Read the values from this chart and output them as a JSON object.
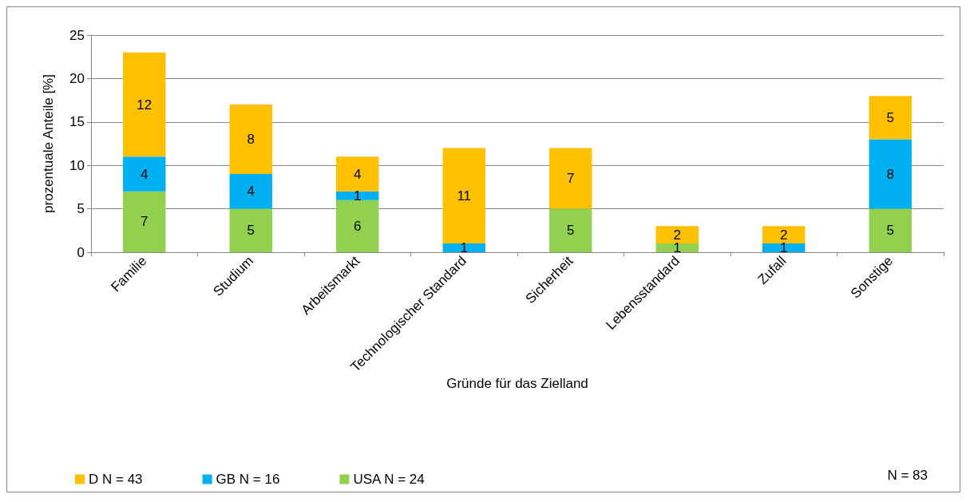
{
  "chart_data": {
    "type": "bar",
    "stacked": true,
    "xlabel": "Gründe für das Zielland",
    "ylabel": "prozentuale Anteile [%]",
    "categories": [
      "Familie",
      "Studium",
      "Arbeitsmarkt",
      "Technologischer Standard",
      "Sicherheit",
      "Lebensstandard",
      "Zufall",
      "Sonstige"
    ],
    "series": [
      {
        "name": "USA N = 24",
        "color": "#92d050",
        "values": [
          7,
          5,
          6,
          null,
          5,
          1,
          null,
          5
        ]
      },
      {
        "name": "GB N = 16",
        "color": "#00b0f0",
        "values": [
          4,
          4,
          1,
          1,
          null,
          null,
          1,
          8
        ]
      },
      {
        "name": "D N = 43",
        "color": "#ffc000",
        "values": [
          12,
          8,
          4,
          11,
          7,
          2,
          2,
          5
        ]
      }
    ],
    "ylim": [
      0,
      25
    ],
    "yticks": [
      0,
      5,
      10,
      15,
      20,
      25
    ],
    "grid": "y",
    "legend": "bottom left",
    "data_labels": true,
    "annotations": [
      "N = 83"
    ]
  }
}
